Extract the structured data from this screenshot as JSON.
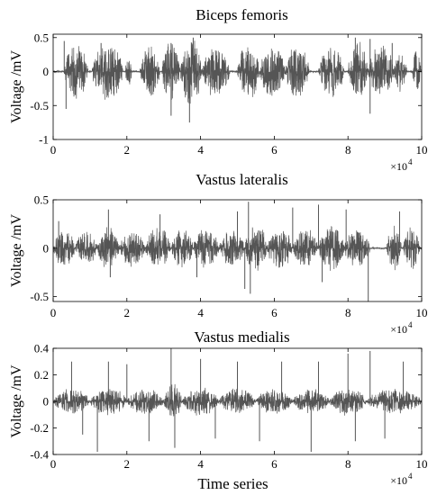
{
  "figure": {
    "shared_xlabel": "Time series",
    "x_exponent_base": "×10",
    "x_exponent_power": "4"
  },
  "chart_data": [
    {
      "type": "line",
      "title": "Biceps femoris",
      "xlabel": "",
      "ylabel": "Voltage /mV",
      "xlim": [
        0,
        10
      ],
      "ylim": [
        -1,
        0.55
      ],
      "x_ticks": [
        0,
        2,
        4,
        6,
        8,
        10
      ],
      "y_ticks": [
        -1,
        -0.5,
        0,
        0.5
      ],
      "y_tick_labels": [
        "-1",
        "-0.5",
        "0",
        "0.5"
      ],
      "x_scale_factor": "×10^4",
      "grid": false,
      "color": "#555555",
      "bursts": [
        {
          "start": 0.3,
          "end": 0.95,
          "amp": 0.42
        },
        {
          "start": 1.05,
          "end": 1.9,
          "amp": 0.44
        },
        {
          "start": 1.95,
          "end": 2.15,
          "amp": 0.2
        },
        {
          "start": 2.35,
          "end": 2.9,
          "amp": 0.38
        },
        {
          "start": 2.95,
          "end": 3.45,
          "amp": 0.45
        },
        {
          "start": 3.45,
          "end": 4.05,
          "amp": 0.5
        },
        {
          "start": 4.05,
          "end": 4.8,
          "amp": 0.4
        },
        {
          "start": 5.0,
          "end": 5.6,
          "amp": 0.42
        },
        {
          "start": 5.6,
          "end": 6.3,
          "amp": 0.4
        },
        {
          "start": 6.3,
          "end": 6.95,
          "amp": 0.42
        },
        {
          "start": 7.2,
          "end": 7.9,
          "amp": 0.38
        },
        {
          "start": 8.0,
          "end": 8.55,
          "amp": 0.45
        },
        {
          "start": 8.55,
          "end": 9.25,
          "amp": 0.42
        },
        {
          "start": 9.25,
          "end": 9.6,
          "amp": 0.3
        },
        {
          "start": 9.75,
          "end": 9.98,
          "amp": 0.32
        }
      ],
      "spikes": [
        {
          "x": 0.3,
          "y": 0.45
        },
        {
          "x": 0.35,
          "y": -0.55
        },
        {
          "x": 1.3,
          "y": 0.42
        },
        {
          "x": 3.2,
          "y": -0.65
        },
        {
          "x": 3.2,
          "y": 0.42
        },
        {
          "x": 3.7,
          "y": -0.75
        },
        {
          "x": 3.8,
          "y": 0.5
        },
        {
          "x": 8.2,
          "y": 0.5
        },
        {
          "x": 8.6,
          "y": 0.48
        },
        {
          "x": 8.6,
          "y": -0.62
        },
        {
          "x": 9.2,
          "y": 0.42
        }
      ]
    },
    {
      "type": "line",
      "title": "Vastus lateralis",
      "xlabel": "",
      "ylabel": "Voltage /mV",
      "xlim": [
        0,
        10
      ],
      "ylim": [
        -0.55,
        0.5
      ],
      "x_ticks": [
        0,
        2,
        4,
        6,
        8,
        10
      ],
      "y_ticks": [
        -0.5,
        0,
        0.5
      ],
      "y_tick_labels": [
        "-0.5",
        "0",
        "0.5"
      ],
      "x_scale_factor": "×10^4",
      "grid": false,
      "color": "#555555",
      "bursts": [
        {
          "start": 0.0,
          "end": 0.6,
          "amp": 0.2
        },
        {
          "start": 0.6,
          "end": 1.2,
          "amp": 0.18
        },
        {
          "start": 1.2,
          "end": 1.8,
          "amp": 0.22
        },
        {
          "start": 1.8,
          "end": 2.5,
          "amp": 0.2
        },
        {
          "start": 2.5,
          "end": 3.2,
          "amp": 0.22
        },
        {
          "start": 3.2,
          "end": 3.8,
          "amp": 0.2
        },
        {
          "start": 3.8,
          "end": 4.5,
          "amp": 0.22
        },
        {
          "start": 4.5,
          "end": 5.2,
          "amp": 0.2
        },
        {
          "start": 5.2,
          "end": 5.8,
          "amp": 0.28
        },
        {
          "start": 5.8,
          "end": 6.5,
          "amp": 0.22
        },
        {
          "start": 6.5,
          "end": 7.2,
          "amp": 0.22
        },
        {
          "start": 7.2,
          "end": 7.9,
          "amp": 0.24
        },
        {
          "start": 7.9,
          "end": 8.6,
          "amp": 0.22
        },
        {
          "start": 9.05,
          "end": 9.45,
          "amp": 0.24
        },
        {
          "start": 9.5,
          "end": 9.95,
          "amp": 0.22
        }
      ],
      "spikes": [
        {
          "x": 0.15,
          "y": 0.28
        },
        {
          "x": 1.5,
          "y": 0.4
        },
        {
          "x": 1.55,
          "y": -0.3
        },
        {
          "x": 2.9,
          "y": 0.35
        },
        {
          "x": 5.0,
          "y": 0.38
        },
        {
          "x": 5.2,
          "y": -0.42
        },
        {
          "x": 5.3,
          "y": 0.48
        },
        {
          "x": 5.35,
          "y": -0.47
        },
        {
          "x": 6.5,
          "y": 0.42
        },
        {
          "x": 7.2,
          "y": 0.45
        },
        {
          "x": 7.3,
          "y": -0.35
        },
        {
          "x": 7.95,
          "y": 0.4
        },
        {
          "x": 8.55,
          "y": -0.55
        },
        {
          "x": 9.4,
          "y": 0.38
        },
        {
          "x": 3.9,
          "y": -0.3
        }
      ]
    },
    {
      "type": "line",
      "title": "Vastus medialis",
      "xlabel": "Time series",
      "ylabel": "Voltage /mV",
      "xlim": [
        0,
        10
      ],
      "ylim": [
        -0.4,
        0.4
      ],
      "x_ticks": [
        0,
        2,
        4,
        6,
        8,
        10
      ],
      "y_ticks": [
        -0.4,
        -0.2,
        0,
        0.2,
        0.4
      ],
      "y_tick_labels": [
        "-0.4",
        "-0.2",
        "0",
        "0.2",
        "0.4"
      ],
      "x_scale_factor": "×10^4",
      "grid": false,
      "color": "#555555",
      "bursts": [
        {
          "start": 0.0,
          "end": 1.0,
          "amp": 0.1
        },
        {
          "start": 1.0,
          "end": 2.0,
          "amp": 0.11
        },
        {
          "start": 2.0,
          "end": 3.0,
          "amp": 0.1
        },
        {
          "start": 3.0,
          "end": 3.5,
          "amp": 0.14
        },
        {
          "start": 3.5,
          "end": 4.5,
          "amp": 0.11
        },
        {
          "start": 4.5,
          "end": 5.5,
          "amp": 0.1
        },
        {
          "start": 5.5,
          "end": 6.5,
          "amp": 0.1
        },
        {
          "start": 6.5,
          "end": 7.5,
          "amp": 0.1
        },
        {
          "start": 7.5,
          "end": 8.5,
          "amp": 0.11
        },
        {
          "start": 8.5,
          "end": 10.0,
          "amp": 0.1
        }
      ],
      "spikes": [
        {
          "x": 0.5,
          "y": 0.3
        },
        {
          "x": 0.8,
          "y": -0.25
        },
        {
          "x": 1.2,
          "y": -0.38
        },
        {
          "x": 1.5,
          "y": 0.3
        },
        {
          "x": 2.0,
          "y": 0.28
        },
        {
          "x": 2.6,
          "y": -0.3
        },
        {
          "x": 3.2,
          "y": 0.4
        },
        {
          "x": 3.3,
          "y": -0.35
        },
        {
          "x": 4.0,
          "y": 0.32
        },
        {
          "x": 4.4,
          "y": -0.28
        },
        {
          "x": 5.0,
          "y": 0.3
        },
        {
          "x": 5.6,
          "y": -0.3
        },
        {
          "x": 6.2,
          "y": 0.3
        },
        {
          "x": 7.0,
          "y": -0.38
        },
        {
          "x": 7.2,
          "y": 0.3
        },
        {
          "x": 8.0,
          "y": 0.36
        },
        {
          "x": 8.2,
          "y": -0.3
        },
        {
          "x": 8.6,
          "y": 0.38
        },
        {
          "x": 9.0,
          "y": -0.28
        },
        {
          "x": 9.5,
          "y": 0.3
        }
      ]
    }
  ]
}
